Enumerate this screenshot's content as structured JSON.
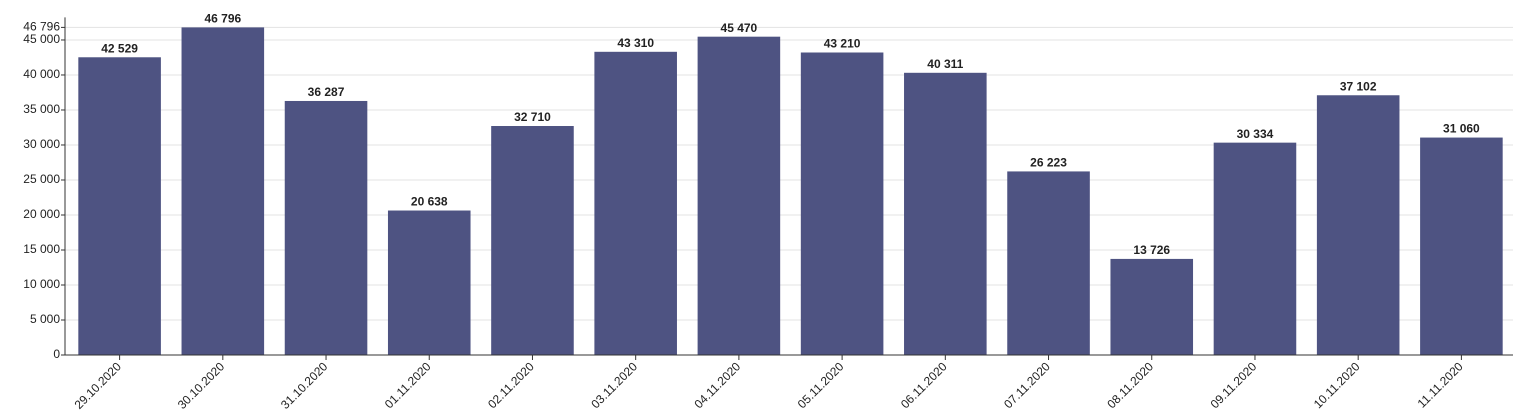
{
  "chart_data": {
    "type": "bar",
    "categories": [
      "29.10.2020",
      "30.10.2020",
      "31.10.2020",
      "01.11.2020",
      "02.11.2020",
      "03.11.2020",
      "04.11.2020",
      "05.11.2020",
      "06.11.2020",
      "07.11.2020",
      "08.11.2020",
      "09.11.2020",
      "10.11.2020",
      "11.11.2020"
    ],
    "values": [
      42529,
      46796,
      36287,
      20638,
      32710,
      43310,
      45470,
      43210,
      40311,
      26223,
      13726,
      30334,
      37102,
      31060
    ],
    "value_labels": [
      "42 529",
      "46 796",
      "36 287",
      "20 638",
      "32 710",
      "43 310",
      "45 470",
      "43 210",
      "40 311",
      "26 223",
      "13 726",
      "30 334",
      "37 102",
      "31 060"
    ],
    "color": "#4e5382",
    "ylim": [
      0,
      46796
    ],
    "yticks": [
      0,
      {
        "value": 5000,
        "label": "5 000"
      },
      {
        "value": 10000,
        "label": "10 000"
      },
      {
        "value": 15000,
        "label": "15 000"
      },
      {
        "value": 20000,
        "label": "20 000"
      },
      {
        "value": 25000,
        "label": "25 000"
      },
      {
        "value": 30000,
        "label": "30 000"
      },
      {
        "value": 35000,
        "label": "35 000"
      },
      {
        "value": 40000,
        "label": "40 000"
      },
      {
        "value": 45000,
        "label": "45 000"
      },
      {
        "value": 46796,
        "label": "46 796"
      }
    ],
    "grid": true
  }
}
